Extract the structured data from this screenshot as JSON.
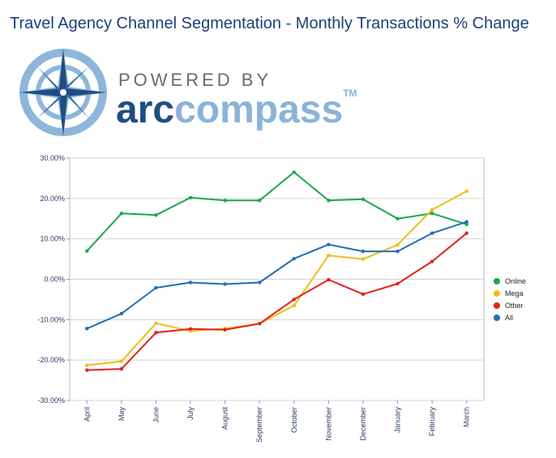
{
  "title": "Travel Agency Channel Segmentation - Monthly Transactions % Change",
  "logo": {
    "powered_by": "POWERED BY",
    "brand_part1": "arc",
    "brand_part2": "compass",
    "trademark": "TM"
  },
  "chart_data": {
    "type": "line",
    "categories": [
      "April",
      "May",
      "June",
      "July",
      "August",
      "September",
      "October",
      "November",
      "December",
      "January",
      "February",
      "March"
    ],
    "ylim": [
      -30,
      30
    ],
    "yticks": [
      "30.00%",
      "20.00%",
      "10.00%",
      "0.00%",
      "-10.00%",
      "-20.00%",
      "-30.00%"
    ],
    "legend_position": "right",
    "series": [
      {
        "name": "Online",
        "color": "#1aa84a",
        "values": [
          7.0,
          16.3,
          15.9,
          20.2,
          19.5,
          19.5,
          26.5,
          19.5,
          19.8,
          15.0,
          16.3,
          13.6
        ]
      },
      {
        "name": "Mega",
        "color": "#f2bb18",
        "values": [
          -21.3,
          -20.3,
          -10.9,
          -12.8,
          -12.2,
          -11.0,
          -6.5,
          5.9,
          5.0,
          8.5,
          17.2,
          21.8
        ]
      },
      {
        "name": "Other",
        "color": "#e2211c",
        "values": [
          -22.5,
          -22.2,
          -13.2,
          -12.3,
          -12.5,
          -11.0,
          -5.0,
          -0.1,
          -3.7,
          -1.1,
          4.4,
          11.4
        ]
      },
      {
        "name": "All",
        "color": "#1f6fb2",
        "values": [
          -12.2,
          -8.5,
          -2.1,
          -0.8,
          -1.2,
          -0.8,
          5.1,
          8.6,
          6.9,
          6.9,
          11.4,
          14.2
        ]
      }
    ]
  }
}
